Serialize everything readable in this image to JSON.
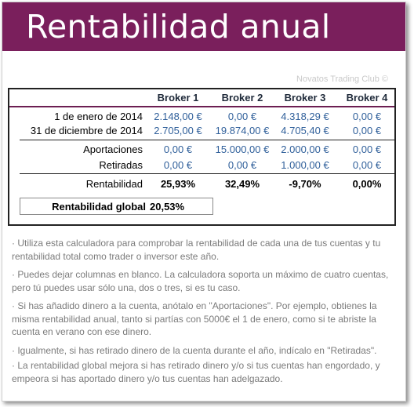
{
  "banner": {
    "title": "Rentabilidad anual"
  },
  "credit": "Novatos Trading Club ©",
  "columns": [
    "Broker 1",
    "Broker 2",
    "Broker 3",
    "Broker 4"
  ],
  "rows": [
    {
      "label": "1 de enero de 2014",
      "values": [
        "2.148,00 €",
        "0,00 €",
        "4.318,29 €",
        "0,00 €"
      ]
    },
    {
      "label": "31 de diciembre de 2014",
      "values": [
        "2.705,00 €",
        "19.874,00 €",
        "4.705,40 €",
        "0,00 €"
      ]
    },
    {
      "label": "Aportaciones",
      "values": [
        "0,00 €",
        "15.000,00 €",
        "2.000,00 €",
        "0,00 €"
      ]
    },
    {
      "label": "Retiradas",
      "values": [
        "0,00 €",
        "0,00 €",
        "1.000,00 €",
        "0,00 €"
      ]
    },
    {
      "label": "Rentabilidad",
      "values": [
        "25,93%",
        "32,49%",
        "-9,70%",
        "0,00%"
      ]
    }
  ],
  "global": {
    "label": "Rentabilidad global",
    "value": "20,53%"
  },
  "notes": [
    "· Utiliza esta calculadora para comprobar la rentabilidad de cada una de tus cuentas y tu rentabilidad total como trader o inversor este año.",
    "· Puedes dejar columnas en blanco. La calculadora soporta un máximo de cuatro cuentas, pero tú puedes usar sólo una, dos o tres, si es tu caso.",
    "· Si has añadido dinero a la cuenta, anótalo en \"Aportaciones\". Por ejemplo, obtienes  la misma rentabilidad anual, tanto si partías con 5000€ el 1 de enero, como si te abriste la cuenta en verano con ese dinero.",
    "· Igualmente, si has retirado dinero de la cuenta durante el año, indícalo en \"Retiradas\".",
    "· La rentabilidad global mejora si has retirado dinero y/o si tus cuentas han engordado, y empeora si has aportado dinero y/o tus cuentas han adelgazado."
  ],
  "colors": {
    "banner": "#7a1f5c",
    "value_blue": "#2f5f9a",
    "note_gray": "#7b7b7b"
  }
}
